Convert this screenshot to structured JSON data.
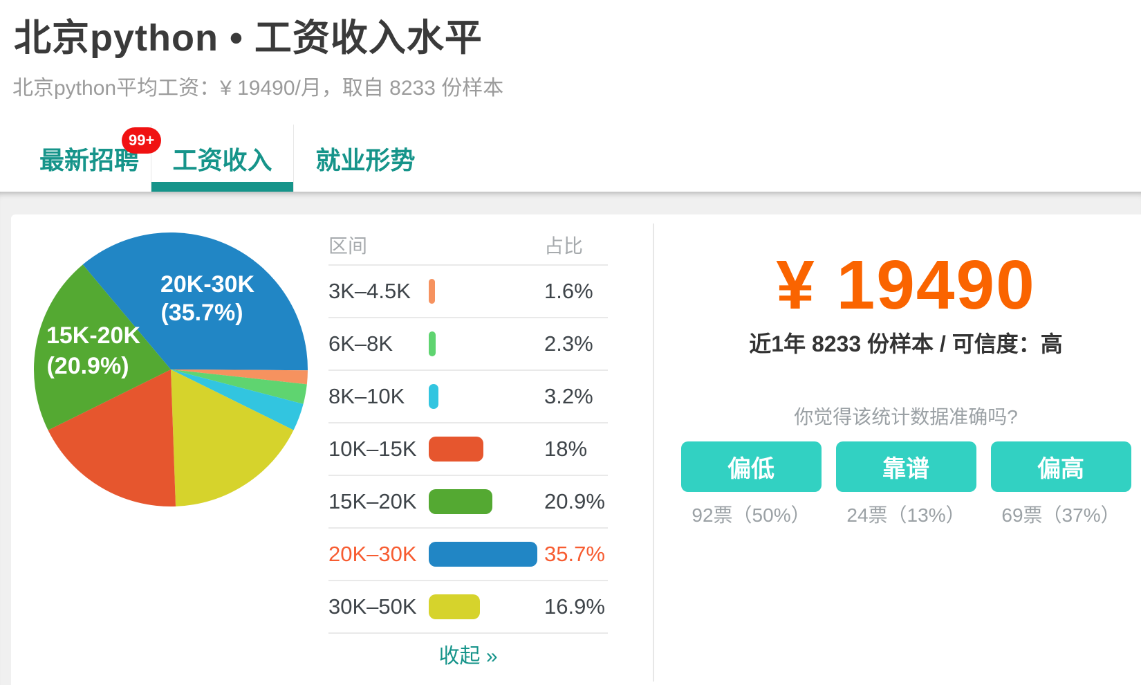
{
  "page": {
    "title": "北京python • 工资收入水平",
    "subtitle": "北京python平均工资：¥ 19490/月，取自 8233 份样本"
  },
  "tabs": {
    "accent": "#16948a",
    "badge_color": "#f01212",
    "items": [
      {
        "label": "最新招聘",
        "badge": "99+",
        "active": false
      },
      {
        "label": "工资收入",
        "badge": null,
        "active": true
      },
      {
        "label": "就业形势",
        "badge": null,
        "active": false
      }
    ]
  },
  "salary_table": {
    "headers": {
      "range": "区间",
      "share": "占比"
    },
    "highlight_color": "#f75c31",
    "collapse_label": "收起 »",
    "rows": [
      {
        "range": "3K–4.5K",
        "share": "1.6%",
        "pct": 1.6,
        "color": "#f6925f",
        "highlight": false
      },
      {
        "range": "6K–8K",
        "share": "2.3%",
        "pct": 2.3,
        "color": "#5fd470",
        "highlight": false
      },
      {
        "range": "8K–10K",
        "share": "3.2%",
        "pct": 3.2,
        "color": "#32c5e0",
        "highlight": false
      },
      {
        "range": "10K–15K",
        "share": "18%",
        "pct": 18,
        "color": "#e6562e",
        "highlight": false
      },
      {
        "range": "15K–20K",
        "share": "20.9%",
        "pct": 20.9,
        "color": "#54a932",
        "highlight": false
      },
      {
        "range": "20K–30K",
        "share": "35.7%",
        "pct": 35.7,
        "color": "#2186c5",
        "highlight": true
      },
      {
        "range": "30K–50K",
        "share": "16.9%",
        "pct": 16.9,
        "color": "#d6d32c",
        "highlight": false
      }
    ]
  },
  "chart_data": {
    "type": "pie",
    "start_angle_deg": 320,
    "direction": "clockwise",
    "segments": [
      {
        "label": "20K–30K",
        "value": 35.7,
        "color": "#2186c5"
      },
      {
        "label": "3K–4.5K",
        "value": 1.6,
        "color": "#f6925f"
      },
      {
        "label": "6K–8K",
        "value": 2.3,
        "color": "#5fd470"
      },
      {
        "label": "8K–10K",
        "value": 3.2,
        "color": "#32c5e0"
      },
      {
        "label": "30K–50K",
        "value": 16.9,
        "color": "#d6d32c"
      },
      {
        "label": "10K–15K",
        "value": 18,
        "color": "#e6562e"
      },
      {
        "label": "15K–20K",
        "value": 20.9,
        "color": "#54a932"
      }
    ],
    "pie_labels": [
      {
        "lines": [
          "20K-30K",
          "(35.7%)"
        ]
      },
      {
        "lines": [
          "15K-20K",
          "(20.9%)"
        ]
      }
    ]
  },
  "stats": {
    "amount": "¥ 19490",
    "amount_color": "#fa6400",
    "meta": "近1年 8233 份样本 / 可信度：高",
    "question": "你觉得该统计数据准确吗?",
    "button_color": "#32d1c2",
    "buttons": [
      {
        "label": "偏低",
        "votes": "92票（50%）"
      },
      {
        "label": "靠谱",
        "votes": "24票（13%）"
      },
      {
        "label": "偏高",
        "votes": "69票（37%）"
      }
    ]
  }
}
